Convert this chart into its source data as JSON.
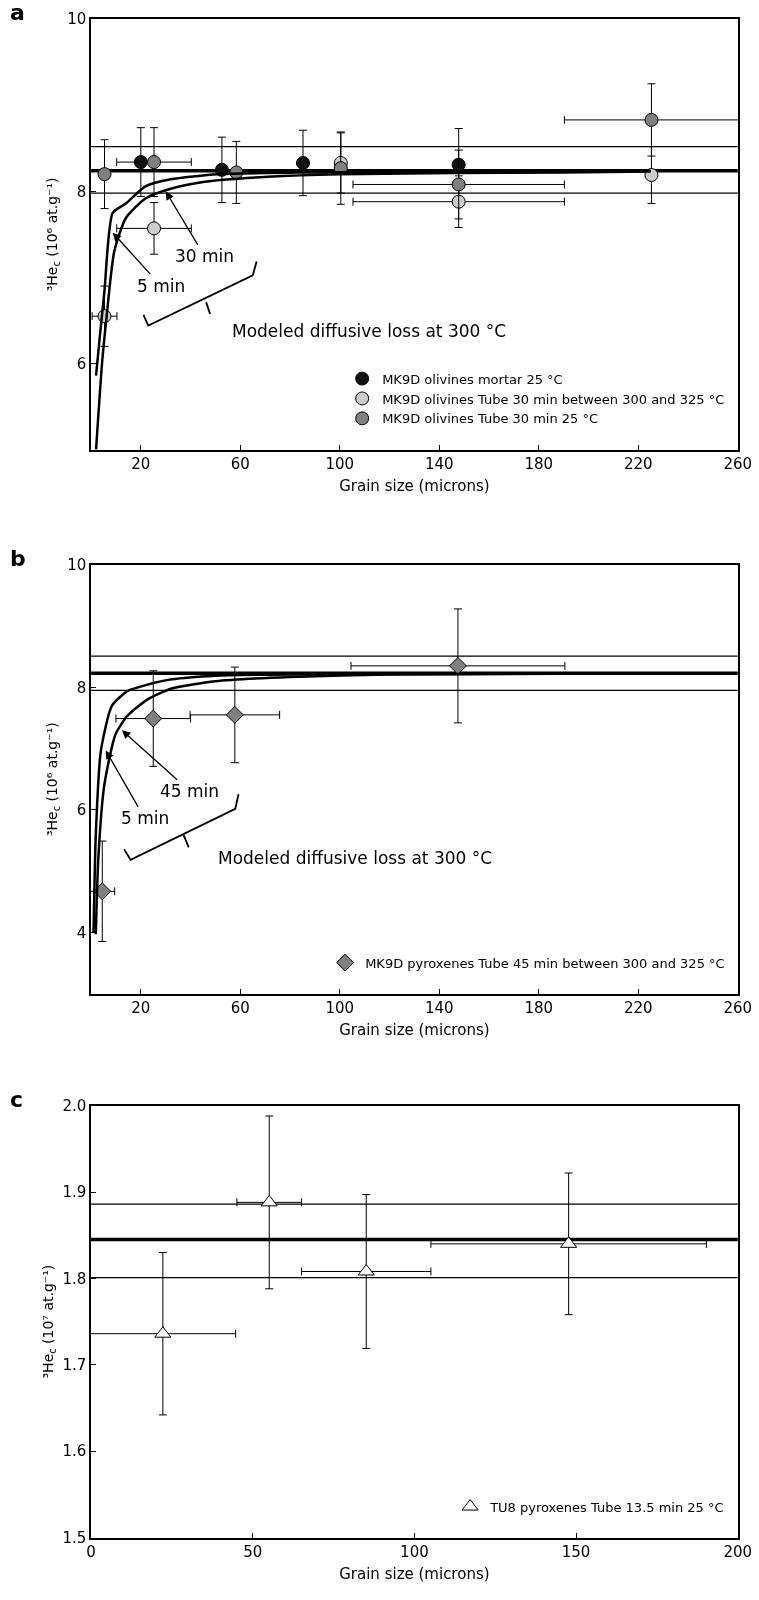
{
  "chart_data": [
    {
      "type": "scatter",
      "title": "a",
      "xlabel": "Grain size (microns)",
      "ylabel": "³He$_{c}$ (10⁶ at.g⁻¹)",
      "xlim": [
        0,
        260
      ],
      "xticks": [
        20,
        60,
        100,
        140,
        180,
        220,
        260
      ],
      "ylim": [
        5,
        10
      ],
      "yticks": [
        6,
        8,
        10
      ],
      "marker": "circle",
      "legend": "bottom right",
      "grid": false,
      "series": [
        {
          "name": "MK9D olivines mortar 25 °C",
          "color": "#111111",
          "x": [
            20,
            52.6,
            85.2,
            147.8
          ],
          "values": [
            8.34,
            8.25,
            8.33,
            8.31
          ],
          "errors": [
            0.4,
            0.38,
            0.38,
            0.42
          ]
        },
        {
          "name": "MK9D olivines Tube 30 min between 300 and 325 °C",
          "color": "#cccccc",
          "x": [
            5.4,
            25.3,
            100.4,
            147.8,
            225.3
          ],
          "values": [
            6.55,
            7.57,
            8.33,
            7.88,
            8.19
          ],
          "errors": [
            0.35,
            0.3,
            0.35,
            0.3,
            0.33
          ],
          "xerrors": [
            5,
            15,
            null,
            42.5,
            null
          ]
        },
        {
          "name": "MK9D olivines Tube 30 min 25 °C",
          "color": "#808080",
          "x": [
            5.4,
            25.3,
            58.4,
            100.4,
            147.8,
            225.3
          ],
          "values": [
            8.2,
            8.34,
            8.22,
            8.27,
            8.08,
            8.83
          ],
          "errors": [
            0.4,
            0.4,
            0.36,
            0.42,
            0.4,
            0.42
          ],
          "xerrors": [
            null,
            15,
            null,
            null,
            42.5,
            35
          ]
        },
        {
          "type": "line",
          "marker": "none",
          "color": "#000000",
          "x": [
            2,
            3.4,
            5.4,
            8.7,
            14,
            22,
            32,
            51,
            90,
            190,
            225
          ],
          "values": [
            5.86,
            6.28,
            6.85,
            7.75,
            7.86,
            8.06,
            8.14,
            8.2,
            8.22,
            8.24,
            8.24
          ]
        },
        {
          "type": "line",
          "marker": "none",
          "color": "#000000",
          "x": [
            2,
            4.4,
            6.3,
            9.3,
            14,
            22,
            32,
            45,
            71,
            100,
            190,
            225
          ],
          "values": [
            5,
            6.0,
            6.56,
            7.3,
            7.69,
            7.92,
            8.03,
            8.11,
            8.17,
            8.2,
            8.22,
            8.23
          ]
        }
      ],
      "ref_lines": [
        {
          "axis": "y",
          "value": 8.24
        },
        {
          "axis": "y",
          "value": 8.52
        },
        {
          "axis": "y",
          "value": 7.98
        }
      ],
      "annotations": [
        {
          "text": "5 min",
          "x": 8.7,
          "y": 7.52
        },
        {
          "text": "30 min",
          "x": 30,
          "y": 8.0
        },
        "Modeled diffusive loss at 300 °C"
      ]
    },
    {
      "type": "scatter",
      "title": "b",
      "xlabel": "Grain size (microns)",
      "ylabel": "³He$_{c}$ (10⁶ at.g⁻¹)",
      "xlim": [
        0,
        260
      ],
      "xticks": [
        20,
        60,
        100,
        140,
        180,
        220,
        260
      ],
      "ylim": [
        3,
        10
      ],
      "yticks": [
        4,
        6,
        8,
        10
      ],
      "marker": "diamond",
      "legend": "bottom right",
      "grid": false,
      "series": [
        {
          "name": "MK9D pyroxenes Tube 45 min between 300 and 325 °C",
          "color": "#808080",
          "x": [
            4.5,
            25,
            57.8,
            147.5
          ],
          "values": [
            4.67,
            7.49,
            7.55,
            8.35
          ],
          "errors": [
            0.82,
            0.78,
            0.78,
            0.93
          ],
          "xerrors": [
            5,
            15,
            18,
            43
          ]
        },
        {
          "type": "line",
          "marker": "none",
          "color": "#000000",
          "x": [
            1,
            1.9,
            3.9,
            8.4,
            14.7,
            20.6,
            32.4,
            50,
            80,
            225
          ],
          "values": [
            4.0,
            5.6,
            6.95,
            7.7,
            7.94,
            8.02,
            8.13,
            8.19,
            8.21,
            8.23
          ]
        },
        {
          "type": "line",
          "marker": "none",
          "color": "#000000",
          "x": [
            1.9,
            2.9,
            5.3,
            9.8,
            14.7,
            22.6,
            32.4,
            50,
            80,
            119,
            225
          ],
          "values": [
            3.97,
            5.2,
            6.4,
            7.23,
            7.54,
            7.8,
            7.98,
            8.1,
            8.17,
            8.21,
            8.23
          ]
        }
      ],
      "ref_lines": [
        {
          "axis": "y",
          "value": 8.23
        },
        {
          "axis": "y",
          "value": 8.51
        },
        {
          "axis": "y",
          "value": 7.95
        }
      ],
      "annotations": [
        {
          "text": "5 min",
          "x": 5.9,
          "y": 6.97
        },
        {
          "text": "45 min",
          "x": 12.4,
          "y": 7.3
        },
        "Modeled diffusive loss at 300 °C"
      ]
    },
    {
      "type": "scatter",
      "title": "c",
      "xlabel": "Grain size (microns)",
      "ylabel": "³He$_{c}$ (10⁷ at.g⁻¹)",
      "xlim": [
        0,
        200
      ],
      "xticks": [
        0,
        50,
        100,
        150,
        200
      ],
      "ylim": [
        1.5,
        2.0
      ],
      "yticks": [
        1.5,
        1.6,
        1.7,
        1.8,
        1.9,
        {
          "value": 2.0,
          "label": "2.0"
        }
      ],
      "marker": "triangle",
      "legend": "bottom right",
      "grid": false,
      "series": [
        {
          "name": "TU8 pyroxenes Tube 13.5 min 25 °C",
          "color": "#ffffff",
          "x": [
            22.2,
            55.1,
            85.1,
            147.7
          ],
          "values": [
            1.736,
            1.888,
            1.808,
            1.84
          ],
          "errors": [
            0.094,
            0.1,
            0.089,
            0.082
          ],
          "xerrors": [
            22.5,
            10,
            20,
            42.6
          ]
        }
      ],
      "ref_lines": [
        {
          "axis": "y",
          "value": 1.845
        },
        {
          "axis": "y",
          "value": 1.886
        },
        {
          "axis": "y",
          "value": 1.801
        }
      ]
    }
  ]
}
